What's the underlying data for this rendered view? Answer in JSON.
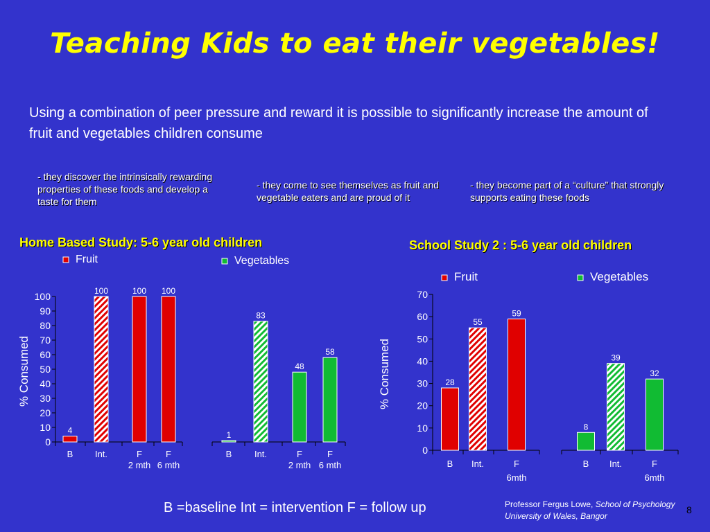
{
  "title": "Teaching Kids to eat their vegetables!",
  "intro": "Using a combination of peer pressure and reward it is possible to significantly increase the amount of fruit and vegetables children consume",
  "bullets": [
    "- they discover the intrinsically rewarding properties of these foods and develop a taste for them",
    "- they come to see themselves as fruit and vegetable eaters and are proud of it",
    "- they become part of a “culture” that strongly supports eating these foods"
  ],
  "footer": "B =baseline Int = intervention F = follow up",
  "credit": {
    "name": "Professor Fergus Lowe,",
    "school": "School of Psychology",
    "university": "University of Wales, Bangor"
  },
  "page_number": "8",
  "colors": {
    "background": "#3333cc",
    "title": "#ffff00",
    "fruit": "#e00000",
    "vegetables": "#11bb33"
  },
  "chart_data": [
    {
      "type": "bar",
      "title": "Home Based Study: 5-6 year old children",
      "ylabel": "% Consumed",
      "ylim": [
        0,
        100
      ],
      "yticks": [
        "0",
        "10",
        "20",
        "30",
        "40",
        "50",
        "60",
        "70",
        "80",
        "90",
        "100"
      ],
      "legend": [
        "Fruit",
        "Vegetables"
      ],
      "groups": [
        {
          "series": "Fruit",
          "bars": [
            {
              "category": "B",
              "sub": "",
              "value": 4,
              "label": "4",
              "hatched": false
            },
            {
              "category": "Int.",
              "sub": "",
              "value": 100,
              "label": "100",
              "hatched": true
            },
            {
              "category": "F",
              "sub": "2 mth",
              "value": 100,
              "label": "100",
              "hatched": false
            },
            {
              "category": "F",
              "sub": "6 mth",
              "value": 100,
              "label": "100",
              "hatched": false
            }
          ]
        },
        {
          "series": "Vegetables",
          "bars": [
            {
              "category": "B",
              "sub": "",
              "value": 1,
              "label": "1",
              "hatched": false
            },
            {
              "category": "Int.",
              "sub": "",
              "value": 83,
              "label": "83",
              "hatched": true
            },
            {
              "category": "F",
              "sub": "2 mth",
              "value": 48,
              "label": "48",
              "hatched": false
            },
            {
              "category": "F",
              "sub": "6 mth",
              "value": 58,
              "label": "58",
              "hatched": false
            }
          ]
        }
      ]
    },
    {
      "type": "bar",
      "title": "School Study 2 : 5-6 year old children",
      "ylabel": "% Consumed",
      "ylim": [
        0,
        70
      ],
      "yticks": [
        "0",
        "10",
        "20",
        "30",
        "40",
        "50",
        "60",
        "70"
      ],
      "legend": [
        "Fruit",
        "Vegetables"
      ],
      "groups": [
        {
          "series": "Fruit",
          "bars": [
            {
              "category": "B",
              "sub": "",
              "value": 28,
              "label": "28",
              "hatched": false
            },
            {
              "category": "Int.",
              "sub": "",
              "value": 55,
              "label": "55",
              "hatched": true
            },
            {
              "category": "F",
              "sub": "6mth",
              "value": 59,
              "label": "59",
              "hatched": false
            }
          ]
        },
        {
          "series": "Vegetables",
          "bars": [
            {
              "category": "B",
              "sub": "",
              "value": 8,
              "label": "8",
              "hatched": false
            },
            {
              "category": "Int.",
              "sub": "",
              "value": 39,
              "label": "39",
              "hatched": true
            },
            {
              "category": "F",
              "sub": "6mth",
              "value": 32,
              "label": "32",
              "hatched": false
            }
          ]
        }
      ]
    }
  ]
}
